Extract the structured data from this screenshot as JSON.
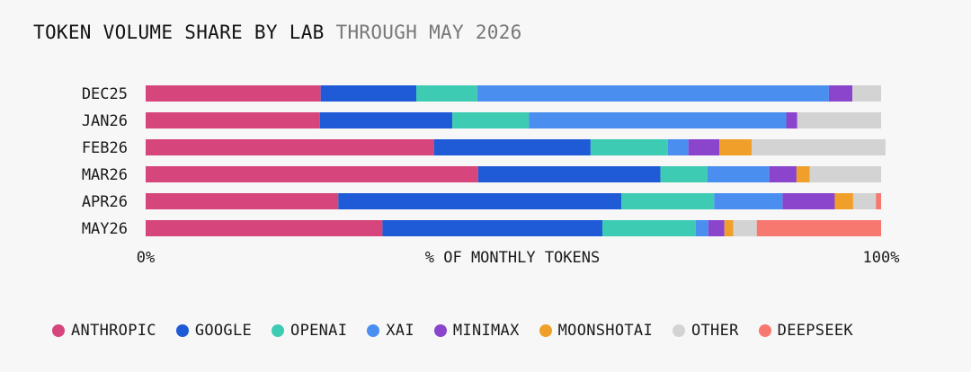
{
  "chart_data": {
    "type": "bar",
    "orientation": "horizontal",
    "stacked": true,
    "normalized": true,
    "title": "TOKEN VOLUME SHARE BY LAB",
    "subtitle": "THROUGH MAY 2026",
    "xlabel": "% OF MONTHLY TOKENS",
    "x_ticks": [
      "0%",
      "100%"
    ],
    "xlim": [
      0,
      100
    ],
    "legend_position": "bottom",
    "grid": false,
    "categories": [
      "DEC25",
      "JAN26",
      "FEB26",
      "MAR26",
      "APR26",
      "MAY26"
    ],
    "series": [
      {
        "name": "ANTHROPIC",
        "color": "#d6457b",
        "values": [
          23.8,
          23.7,
          39.2,
          45.2,
          26.2,
          32.2
        ]
      },
      {
        "name": "GOOGLE",
        "color": "#1f5bd6",
        "values": [
          13.0,
          18.0,
          21.3,
          24.8,
          38.5,
          29.9
        ]
      },
      {
        "name": "OPENAI",
        "color": "#3ecbb3",
        "values": [
          8.3,
          10.4,
          10.5,
          6.4,
          12.6,
          12.7
        ]
      },
      {
        "name": "XAI",
        "color": "#4a8ff0",
        "values": [
          47.8,
          35.0,
          2.8,
          8.4,
          9.3,
          1.7
        ]
      },
      {
        "name": "MINIMAX",
        "color": "#8a45cc",
        "values": [
          3.2,
          1.5,
          4.2,
          3.7,
          7.1,
          2.2
        ]
      },
      {
        "name": "MOONSHOTAI",
        "color": "#f0a02a",
        "values": [
          0,
          0,
          4.4,
          1.8,
          2.5,
          1.2
        ]
      },
      {
        "name": "OTHER",
        "color": "#d3d3d3",
        "values": [
          3.9,
          11.4,
          18.2,
          9.7,
          3.1,
          3.2
        ]
      },
      {
        "name": "DEEPSEEK",
        "color": "#f6786e",
        "values": [
          0,
          0,
          0,
          0,
          0.7,
          16.9
        ]
      }
    ]
  }
}
